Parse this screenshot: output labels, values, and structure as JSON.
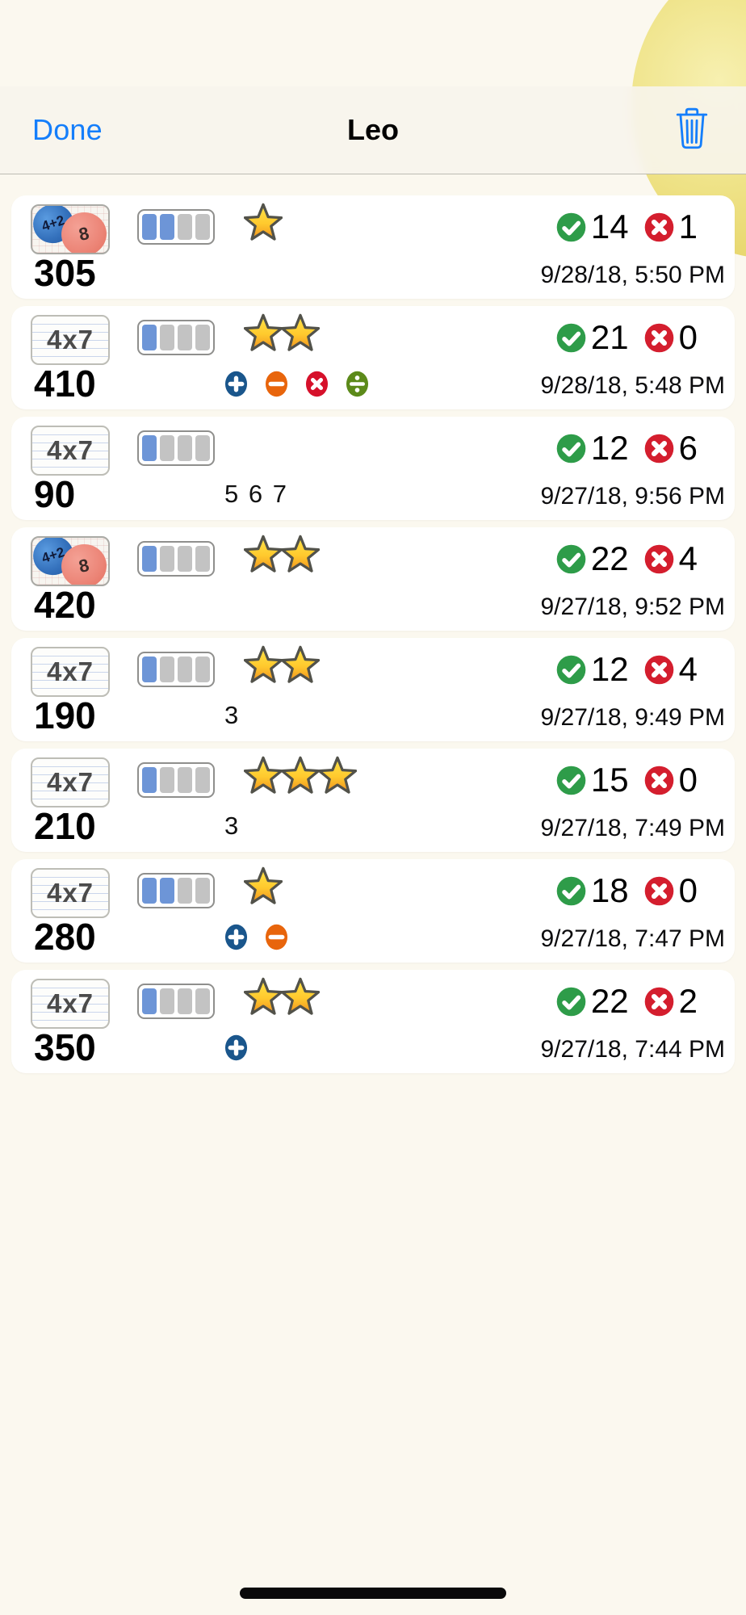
{
  "nav": {
    "done_label": "Done",
    "title": "Leo",
    "trash_icon": "trash-icon"
  },
  "colors": {
    "background": "#FBF8EF",
    "nav_tint": "#147EFB",
    "card": "#FFFFFF",
    "progress_filled": "#6D95D7",
    "progress_empty": "#C3C3C3",
    "correct_green": "#2E9C49",
    "wrong_red": "#D41E2E",
    "star_gold": "#FFD43A",
    "ops": {
      "plus": "#1A568C",
      "minus": "#E8650C",
      "times": "#D6112B",
      "divide": "#5C8A1A"
    }
  },
  "progress_total": 4,
  "rows": [
    {
      "icon": "balloons",
      "balloon_left": "4+2",
      "balloon_right": "8",
      "progress_filled": 2,
      "stars": 1,
      "correct": 14,
      "wrong": 1,
      "score": "305",
      "sub_text": "",
      "ops": [],
      "date": "9/28/18, 5:50 PM"
    },
    {
      "icon": "card",
      "icon_label": "4x7",
      "progress_filled": 1,
      "stars": 2,
      "correct": 21,
      "wrong": 0,
      "score": "410",
      "sub_text": "",
      "ops": [
        "plus",
        "minus",
        "times",
        "divide"
      ],
      "date": "9/28/18, 5:48 PM"
    },
    {
      "icon": "card",
      "icon_label": "4x7",
      "progress_filled": 1,
      "stars": 0,
      "correct": 12,
      "wrong": 6,
      "score": "90",
      "sub_text": "5 6 7",
      "ops": [],
      "date": "9/27/18, 9:56 PM"
    },
    {
      "icon": "balloons",
      "balloon_left": "4+2",
      "balloon_right": "8",
      "progress_filled": 1,
      "stars": 2,
      "correct": 22,
      "wrong": 4,
      "score": "420",
      "sub_text": "",
      "ops": [],
      "date": "9/27/18, 9:52 PM"
    },
    {
      "icon": "card",
      "icon_label": "4x7",
      "progress_filled": 1,
      "stars": 2,
      "correct": 12,
      "wrong": 4,
      "score": "190",
      "sub_text": "3",
      "ops": [],
      "date": "9/27/18, 9:49 PM"
    },
    {
      "icon": "card",
      "icon_label": "4x7",
      "progress_filled": 1,
      "stars": 3,
      "correct": 15,
      "wrong": 0,
      "score": "210",
      "sub_text": "3",
      "ops": [],
      "date": "9/27/18, 7:49 PM"
    },
    {
      "icon": "card",
      "icon_label": "4x7",
      "progress_filled": 2,
      "stars": 1,
      "correct": 18,
      "wrong": 0,
      "score": "280",
      "sub_text": "",
      "ops": [
        "plus",
        "minus"
      ],
      "date": "9/27/18, 7:47 PM"
    },
    {
      "icon": "card",
      "icon_label": "4x7",
      "progress_filled": 1,
      "stars": 2,
      "correct": 22,
      "wrong": 2,
      "score": "350",
      "sub_text": "",
      "ops": [
        "plus"
      ],
      "date": "9/27/18, 7:44 PM"
    }
  ]
}
